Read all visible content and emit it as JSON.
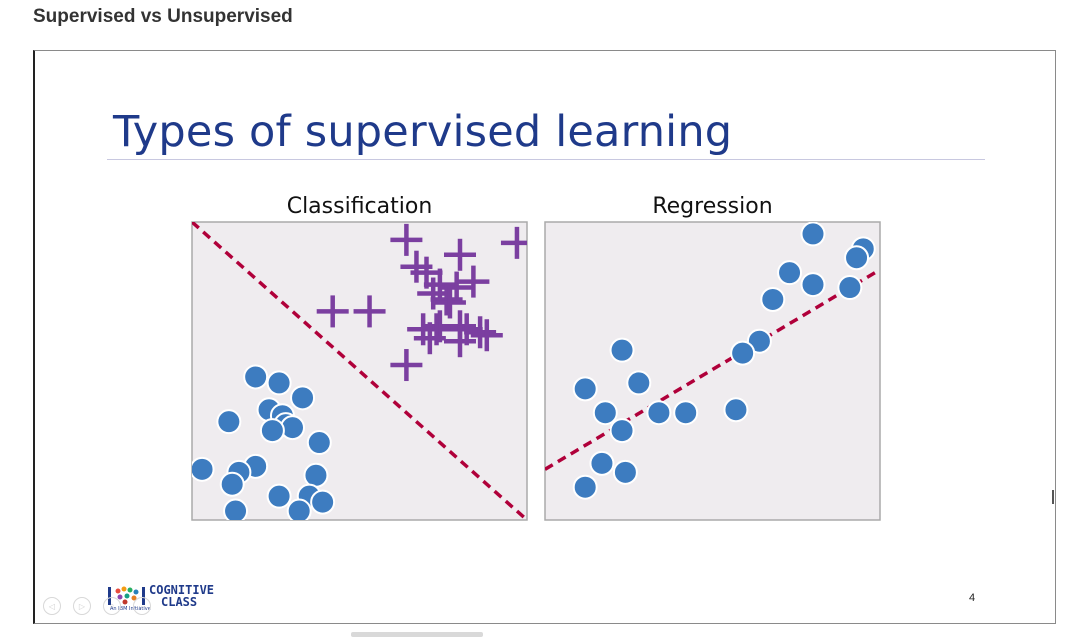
{
  "page": {
    "title": "Supervised vs Unsupervised"
  },
  "slide": {
    "heading": "Types of supervised learning",
    "number": "4",
    "logo": {
      "line1": "COGNITIVE",
      "line2": "CLASS",
      "tagline": "An IBM Initiative"
    },
    "nav": [
      "◁",
      "▷",
      "⌕",
      "⋯"
    ]
  },
  "colors": {
    "heading": "#1f3a8a",
    "dot": "#3d7cc0",
    "plus": "#7b3fa0",
    "boundary": "#b0003a",
    "panel_bg": "#efecef",
    "panel_border": "#aaaaaa"
  },
  "chart_data": [
    {
      "type": "scatter",
      "title": "Classification",
      "xlim": [
        0,
        100
      ],
      "ylim": [
        0,
        100
      ],
      "grid": false,
      "series": [
        {
          "marker": "circle",
          "points": [
            [
              19,
              48
            ],
            [
              26,
              46
            ],
            [
              33,
              41
            ],
            [
              23,
              37
            ],
            [
              27,
              35
            ],
            [
              28,
              32
            ],
            [
              30,
              31
            ],
            [
              24,
              30
            ],
            [
              11,
              33
            ],
            [
              38,
              26
            ],
            [
              19,
              18
            ],
            [
              14,
              16
            ],
            [
              3,
              17
            ],
            [
              12,
              12
            ],
            [
              37,
              15
            ],
            [
              26,
              8
            ],
            [
              35,
              8
            ],
            [
              39,
              6
            ],
            [
              32,
              3
            ],
            [
              13,
              3
            ]
          ]
        },
        {
          "marker": "plus",
          "points": [
            [
              64,
              94
            ],
            [
              80,
              89
            ],
            [
              97,
              93
            ],
            [
              67,
              85
            ],
            [
              70,
              83
            ],
            [
              84,
              80
            ],
            [
              74,
              79
            ],
            [
              79,
              78
            ],
            [
              72,
              76
            ],
            [
              76,
              74
            ],
            [
              77,
              73
            ],
            [
              42,
              70
            ],
            [
              53,
              70
            ],
            [
              74,
              65
            ],
            [
              80,
              65
            ],
            [
              69,
              64
            ],
            [
              73,
              64
            ],
            [
              82,
              64
            ],
            [
              86,
              63
            ],
            [
              88,
              62
            ],
            [
              71,
              61
            ],
            [
              80,
              60
            ],
            [
              64,
              52
            ]
          ]
        }
      ],
      "boundary": {
        "style": "dashed",
        "from": [
          0,
          100
        ],
        "to": [
          100,
          0
        ]
      }
    },
    {
      "type": "scatter",
      "title": "Regression",
      "xlim": [
        0,
        100
      ],
      "ylim": [
        0,
        100
      ],
      "grid": false,
      "series": [
        {
          "marker": "circle",
          "points": [
            [
              80,
              96
            ],
            [
              95,
              91
            ],
            [
              93,
              88
            ],
            [
              73,
              83
            ],
            [
              80,
              79
            ],
            [
              91,
              78
            ],
            [
              68,
              74
            ],
            [
              64,
              60
            ],
            [
              59,
              56
            ],
            [
              23,
              57
            ],
            [
              28,
              46
            ],
            [
              12,
              44
            ],
            [
              18,
              36
            ],
            [
              34,
              36
            ],
            [
              42,
              36
            ],
            [
              57,
              37
            ],
            [
              23,
              30
            ],
            [
              17,
              19
            ],
            [
              24,
              16
            ],
            [
              12,
              11
            ]
          ]
        }
      ],
      "fit_line": {
        "style": "dashed",
        "from": [
          0,
          17
        ],
        "to": [
          100,
          84
        ]
      }
    }
  ]
}
